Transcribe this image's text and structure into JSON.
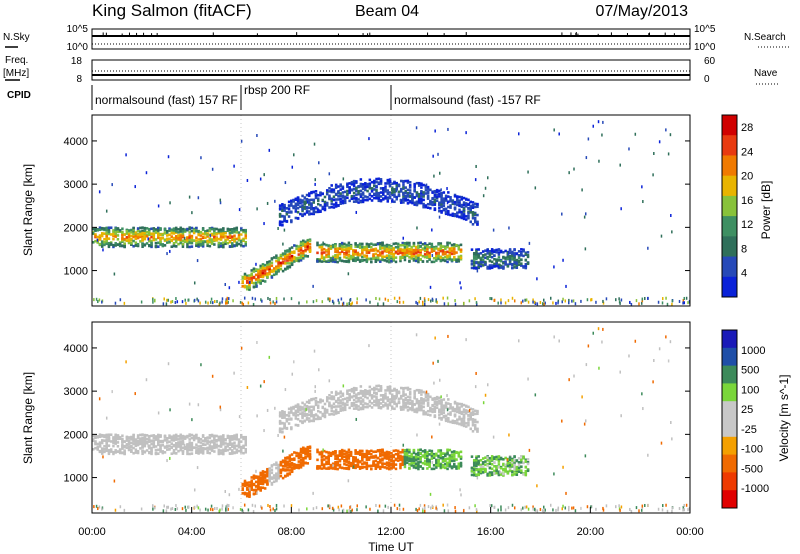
{
  "header": {
    "station": "King Salmon (fitACF)",
    "beam": "Beam 04",
    "date": "07/May/2013"
  },
  "summary_panels": {
    "nsky_label": "N.Sky",
    "nsky_left_ticks": [
      "10^5",
      "10^0"
    ],
    "nsearch_label": "N.Search",
    "nsearch_right_ticks": [
      "10^5",
      "10^0"
    ],
    "freq_label": "Freq.",
    "freq_unit": "[MHz]",
    "freq_left_ticks": [
      "18",
      "8"
    ],
    "nave_label": "Nave",
    "nave_right_ticks": [
      "60",
      "0"
    ],
    "cpid_label": "CPID",
    "cpid_segments": [
      {
        "label": "normalsound (fast) 157 RF"
      },
      {
        "label": "rbsp 200 RF"
      },
      {
        "label": "normalsound (fast) -157 RF"
      }
    ]
  },
  "colors": {
    "power_scale": [
      "#0a22d8",
      "#2649b8",
      "#2f6f5a",
      "#3e8f62",
      "#88c23a",
      "#e8b400",
      "#f07a00",
      "#e83a10",
      "#d00000"
    ],
    "velocity_scale": [
      "#e00000",
      "#ee3a00",
      "#f06a00",
      "#f4a000",
      "#c8c8c8",
      "#c8c8c8",
      "#7ad63a",
      "#3c8a5a",
      "#1f4fa8",
      "#1a1ab8"
    ],
    "ground_scatter": "#c0c0c0"
  },
  "chart_data": [
    {
      "type": "heatmap",
      "panel": "power",
      "xlabel": "",
      "ylabel": "Slant Range [km]",
      "xlim": [
        0,
        24
      ],
      "ylim": [
        180,
        4600
      ],
      "y_ticks": [
        "1000",
        "2000",
        "3000",
        "4000"
      ],
      "colorbar_label": "Power [dB]",
      "colorbar_ticks": [
        "4",
        "8",
        "12",
        "16",
        "20",
        "24",
        "28"
      ],
      "colorbar_range": [
        0,
        30
      ],
      "echo_regions": [
        {
          "t_start": 0.0,
          "t_end": 6.2,
          "range_center": 1800,
          "power_peak": 22
        },
        {
          "t_start": 6.0,
          "t_end": 8.7,
          "range_center": 1000,
          "power_peak": 26
        },
        {
          "t_start": 9.0,
          "t_end": 14.8,
          "range_center": 1450,
          "power_peak": 24
        },
        {
          "t_start": 7.5,
          "t_end": 15.5,
          "range_center": 2700,
          "power_peak": 6
        },
        {
          "t_start": 15.2,
          "t_end": 17.5,
          "range_center": 1300,
          "power_peak": 10
        }
      ]
    },
    {
      "type": "heatmap",
      "panel": "velocity",
      "xlabel": "Time UT",
      "ylabel": "Slant Range [km]",
      "xlim": [
        0,
        24
      ],
      "ylim": [
        180,
        4600
      ],
      "x_ticks": [
        "00:00",
        "04:00",
        "08:00",
        "12:00",
        "16:00",
        "20:00",
        "00:00"
      ],
      "y_ticks": [
        "1000",
        "2000",
        "3000",
        "4000"
      ],
      "colorbar_label": "Velocity [m s^-1]",
      "colorbar_ticks": [
        "1000",
        "500",
        "100",
        "25",
        "-25",
        "-100",
        "-500",
        "-1000"
      ],
      "colorbar_range": [
        -1000,
        1000
      ],
      "echo_regions": [
        {
          "t_start": 0.0,
          "t_end": 7.5,
          "range_center": 1750,
          "velocity": 0,
          "note": "ground scatter"
        },
        {
          "t_start": 6.0,
          "t_end": 8.7,
          "range_center": 1000,
          "velocity": -300
        },
        {
          "t_start": 9.0,
          "t_end": 12.5,
          "range_center": 1450,
          "velocity": -200
        },
        {
          "t_start": 12.5,
          "t_end": 15.5,
          "range_center": 1400,
          "velocity": 100
        },
        {
          "t_start": 8.0,
          "t_end": 15.5,
          "range_center": 2650,
          "velocity": 0,
          "note": "ground scatter"
        },
        {
          "t_start": 15.2,
          "t_end": 17.5,
          "range_center": 1300,
          "velocity": 80
        }
      ]
    }
  ]
}
